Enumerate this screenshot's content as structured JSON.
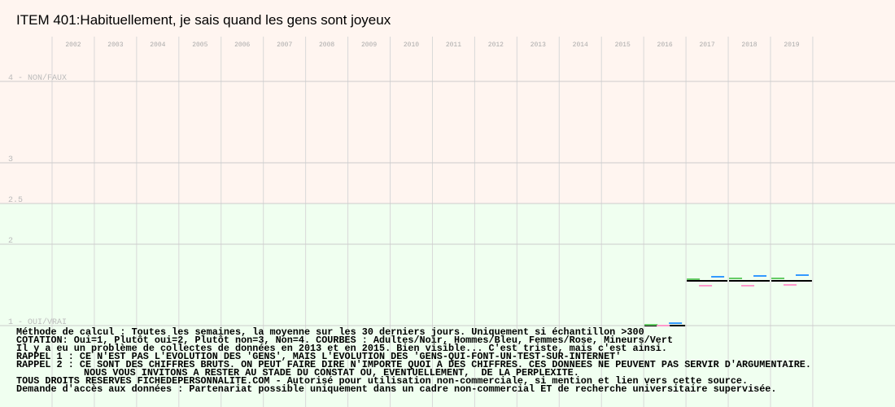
{
  "chart_data": {
    "type": "segments",
    "title": "ITEM 401:Habituellement, je sais quand les gens sont joyeux",
    "categories": [
      "2002",
      "2003",
      "2004",
      "2005",
      "2006",
      "2007",
      "2008",
      "2009",
      "2010",
      "2011",
      "2012",
      "2013",
      "2014",
      "2015",
      "2016",
      "2017",
      "2018",
      "2019"
    ],
    "series": [
      {
        "name": "Adultes",
        "color": "#000000",
        "values": [
          null,
          null,
          null,
          null,
          null,
          null,
          null,
          null,
          null,
          null,
          null,
          null,
          null,
          null,
          1.0,
          1.55,
          1.55,
          1.55
        ]
      },
      {
        "name": "Mineurs",
        "color": "#66cc66",
        "values": [
          null,
          null,
          null,
          null,
          null,
          null,
          null,
          null,
          null,
          null,
          null,
          null,
          null,
          null,
          1.01,
          1.57,
          1.58,
          1.58
        ]
      },
      {
        "name": "Femmes",
        "color": "#ff99cc",
        "values": [
          null,
          null,
          null,
          null,
          null,
          null,
          null,
          null,
          null,
          null,
          null,
          null,
          null,
          null,
          1.0,
          1.49,
          1.49,
          1.5
        ]
      },
      {
        "name": "Hommes",
        "color": "#3399ff",
        "values": [
          null,
          null,
          null,
          null,
          null,
          null,
          null,
          null,
          null,
          null,
          null,
          null,
          null,
          null,
          1.03,
          1.6,
          1.61,
          1.62
        ]
      }
    ],
    "ylim": [
      0,
      5
    ],
    "yticks": [
      {
        "value": 4,
        "label": "4 - NON/FAUX"
      },
      3,
      2.5,
      2,
      {
        "value": 1,
        "label": "1 - OUI/VRAI"
      }
    ],
    "grid": true,
    "notes": [
      "Méthode de calcul : Toutes les semaines, la moyenne sur les 30 derniers jours. Uniquement si échantillon >300",
      "COTATION: Oui=1, Plutôt oui=2, Plutôt non=3, Non=4. COURBES : Adultes/Noir, Hommes/Bleu, Femmes/Rose, Mineurs/Vert",
      "Il y a eu un problème de collectes de données en 2013 et en 2015. Bien visible... C'est triste, mais c'est ainsi.",
      "RAPPEL 1 : CE N'EST PAS L'EVOLUTION DES 'GENS', MAIS L'EVOLUTION DES 'GENS-QUI-FONT-UN-TEST-SUR-INTERNET'",
      "RAPPEL 2 : CE SONT DES CHIFFRES BRUTS. ON PEUT FAIRE DIRE N'IMPORTE QUOI A DES CHIFFRES. CES DONNEES NE PEUVENT PAS SERVIR D'ARGUMENTAIRE.",
      "NOUS VOUS INVITONS A RESTER AU STADE DU CONSTAT OU, EVENTUELLEMENT,  DE LA PERPLEXITE.",
      "TOUS DROITS RESERVES FICHEDEPERSONNALITE.COM - Autorisé pour utilisation non-commerciale, si mention et lien vers cette source.",
      "Demande d'accès aux données : Partenariat possible uniquement dans un cadre non-commercial ET de recherche universitaire supervisée."
    ]
  }
}
